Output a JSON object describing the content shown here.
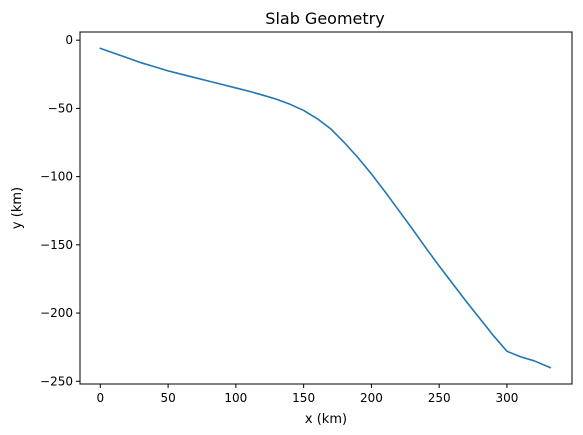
{
  "chart_data": {
    "type": "line",
    "title": "Slab Geometry",
    "xlabel": "x (km)",
    "ylabel": "y (km)",
    "xlim": [
      -15,
      348
    ],
    "ylim": [
      -252,
      6
    ],
    "xticks": [
      0,
      50,
      100,
      150,
      200,
      250,
      300
    ],
    "yticks": [
      0,
      -50,
      -100,
      -150,
      -200,
      -250
    ],
    "xtick_labels": [
      "0",
      "50",
      "100",
      "150",
      "200",
      "250",
      "300"
    ],
    "ytick_labels": [
      "0",
      "−50",
      "−100",
      "−150",
      "−200",
      "−250"
    ],
    "grid": false,
    "series": [
      {
        "color": "#1f77b4",
        "x": [
          0,
          10,
          20,
          30,
          40,
          50,
          60,
          70,
          80,
          90,
          100,
          110,
          120,
          130,
          140,
          150,
          160,
          170,
          180,
          190,
          200,
          210,
          220,
          230,
          240,
          250,
          260,
          270,
          280,
          290,
          300,
          310,
          320,
          332
        ],
        "y": [
          -6,
          -9.5,
          -13,
          -16.5,
          -19.5,
          -22.5,
          -25,
          -27.5,
          -30,
          -32.5,
          -35,
          -37.5,
          -40.3,
          -43.3,
          -47,
          -51.5,
          -57.5,
          -65,
          -75,
          -86,
          -98,
          -111,
          -124.5,
          -138,
          -152,
          -165.5,
          -178.5,
          -191.5,
          -204,
          -216.5,
          -228,
          -232,
          -235,
          -240
        ]
      }
    ]
  }
}
